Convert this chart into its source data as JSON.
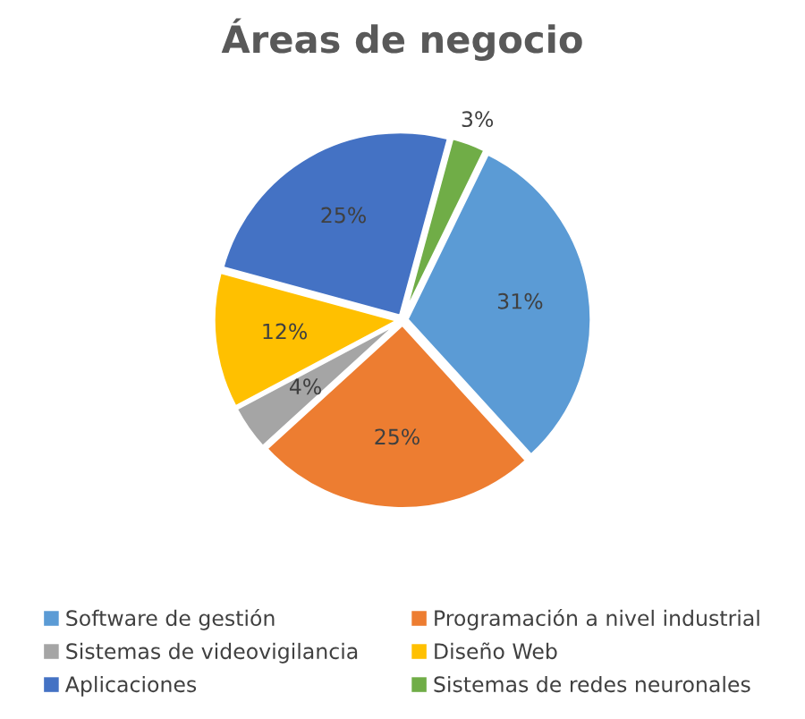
{
  "chart_data": {
    "type": "pie",
    "title": "Áreas de negocio",
    "categories": [
      "Software de gestión",
      "Programación a nivel industrial",
      "Sistemas de videovigilancia",
      "Diseño Web",
      "Aplicaciones",
      "Sistemas de redes neuronales"
    ],
    "values": [
      31,
      25,
      4,
      12,
      25,
      3
    ],
    "value_labels": [
      "31%",
      "25%",
      "4%",
      "12%",
      "25%",
      "3%"
    ],
    "colors": [
      "#5b9bd5",
      "#ed7d31",
      "#a5a5a5",
      "#ffc000",
      "#4472c4",
      "#70ad47"
    ],
    "legend": "bottom"
  }
}
